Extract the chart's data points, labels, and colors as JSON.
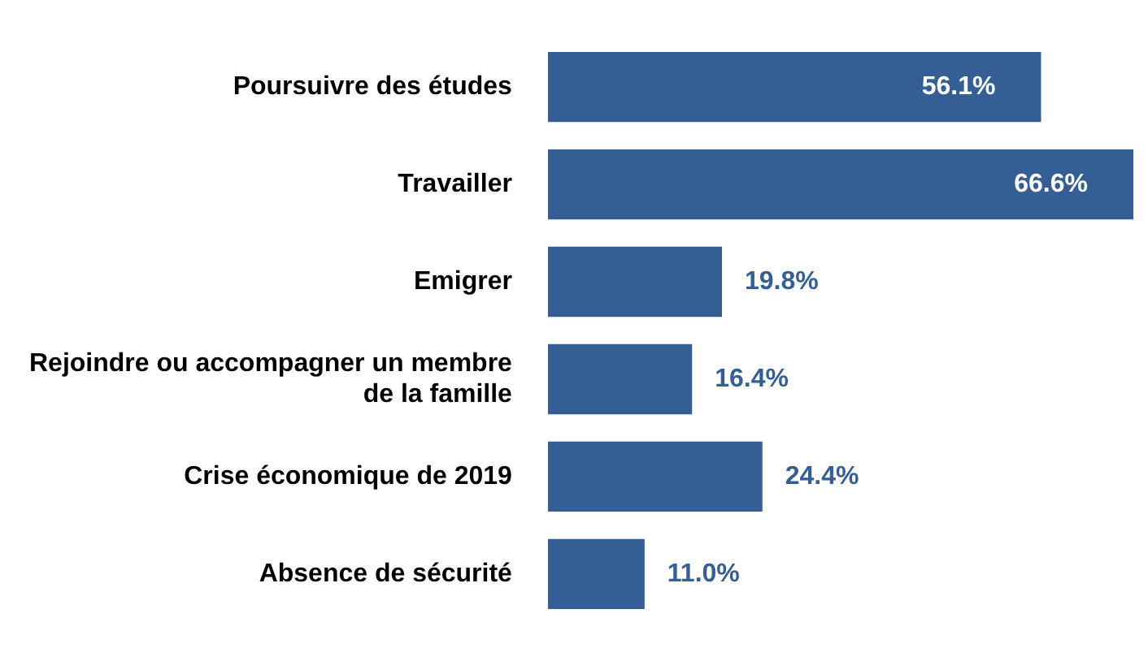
{
  "chart_data": {
    "type": "bar",
    "orientation": "horizontal",
    "categories": [
      "Poursuivre des études",
      "Travailler",
      "Emigrer",
      "Rejoindre ou accompagner un membre de la famille",
      "Crise économique de 2019",
      "Absence de sécurité"
    ],
    "values": [
      56.1,
      66.6,
      19.8,
      16.4,
      24.4,
      11.0
    ],
    "value_labels": [
      "56.1%",
      "66.6%",
      "19.8%",
      "16.4%",
      "24.4%",
      "11.0%"
    ],
    "color": "#355f94",
    "legend": false
  }
}
